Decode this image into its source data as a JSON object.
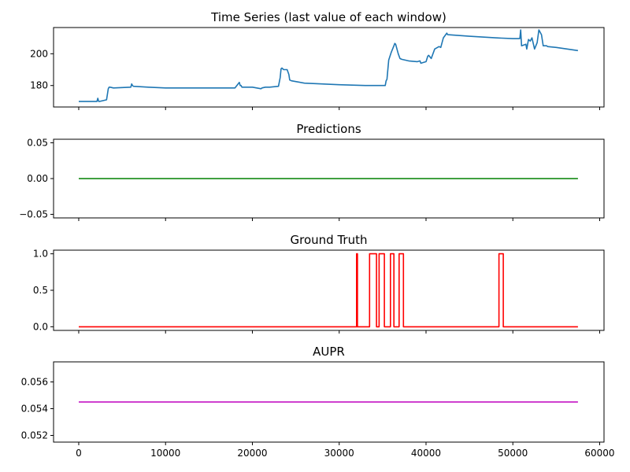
{
  "colors": {
    "time_series": "#1f77b4",
    "predictions": "#008000",
    "ground_truth": "#ff0000",
    "aupr": "#bf00bf"
  },
  "chart_data": [
    {
      "type": "line",
      "title": "Time Series (last value of each window)",
      "xlim": [
        -2900,
        60500
      ],
      "ylim": [
        166.5,
        216.5
      ],
      "yticks": [
        180,
        200
      ],
      "ytick_labels": [
        "180",
        "200"
      ],
      "xticks": [
        0,
        10000,
        20000,
        30000,
        40000,
        50000,
        60000
      ],
      "show_xtick_labels": false,
      "series": [
        {
          "color": "#1f77b4",
          "x": [
            0,
            2000,
            2100,
            2200,
            2300,
            2400,
            3200,
            3400,
            3500,
            3600,
            4000,
            6000,
            6100,
            6200,
            6300,
            8000,
            10000,
            15000,
            18000,
            18500,
            18600,
            18700,
            18800,
            19000,
            20000,
            21000,
            21100,
            21500,
            22000,
            23000,
            23200,
            23300,
            23400,
            23600,
            24000,
            24200,
            24300,
            24500,
            25000,
            26000,
            30000,
            33000,
            35300,
            35400,
            35500,
            35600,
            35700,
            36000,
            36300,
            36400,
            36500,
            36800,
            37000,
            37200,
            38000,
            39000,
            39300,
            39400,
            40000,
            40200,
            40300,
            40600,
            41000,
            41500,
            41700,
            42000,
            42400,
            42500,
            45000,
            48000,
            50000,
            50800,
            50900,
            51000,
            51500,
            51600,
            51800,
            52000,
            52200,
            52500,
            52800,
            53000,
            53300,
            53500,
            53700,
            53900,
            54000,
            55000,
            57500
          ],
          "y": [
            170,
            170,
            170,
            172,
            170,
            170,
            171,
            178,
            179,
            179,
            178.5,
            179,
            181,
            180,
            179.5,
            179,
            178.5,
            178.5,
            178.5,
            182,
            180,
            180,
            179,
            179,
            179,
            178,
            178.5,
            179,
            179,
            179.5,
            185,
            190.5,
            191,
            190,
            190,
            187,
            183.5,
            183,
            182.5,
            181.5,
            180.5,
            180,
            180,
            183,
            184,
            190,
            196,
            201,
            205,
            206.5,
            206,
            200,
            197,
            196.5,
            195.5,
            195,
            195.5,
            194,
            195,
            198.5,
            199,
            197,
            203,
            204.5,
            204,
            210,
            213,
            212,
            211,
            210,
            209.5,
            209.5,
            215,
            205,
            206,
            203,
            209,
            208,
            210,
            203,
            207,
            215,
            212,
            205,
            205,
            205,
            204.5,
            204,
            202
          ]
        }
      ]
    },
    {
      "type": "line",
      "title": "Predictions",
      "xlim": [
        -2900,
        60500
      ],
      "ylim": [
        -0.055,
        0.055
      ],
      "yticks": [
        -0.05,
        0,
        0.05
      ],
      "ytick_labels": [
        "−0.05",
        "0.00",
        "0.05"
      ],
      "xticks": [
        0,
        10000,
        20000,
        30000,
        40000,
        50000,
        60000
      ],
      "show_xtick_labels": false,
      "series": [
        {
          "color": "#008000",
          "x": [
            0,
            57500
          ],
          "y": [
            0,
            0
          ]
        }
      ]
    },
    {
      "type": "line",
      "title": "Ground Truth",
      "xlim": [
        -2900,
        60500
      ],
      "ylim": [
        -0.05,
        1.05
      ],
      "yticks": [
        0,
        0.5,
        1
      ],
      "ytick_labels": [
        "0.0",
        "0.5",
        "1.0"
      ],
      "xticks": [
        0,
        10000,
        20000,
        30000,
        40000,
        50000,
        60000
      ],
      "show_xtick_labels": false,
      "series": [
        {
          "color": "#ff0000",
          "x": [
            0,
            32000,
            32000,
            32100,
            32100,
            33500,
            33500,
            34300,
            34300,
            34600,
            34600,
            35200,
            35200,
            35900,
            35900,
            36300,
            36300,
            36900,
            36900,
            37400,
            37400,
            48400,
            48400,
            48900,
            48900,
            57500
          ],
          "y": [
            0,
            0,
            1,
            1,
            0,
            0,
            1,
            1,
            0,
            0,
            1,
            1,
            0,
            0,
            1,
            1,
            0,
            0,
            1,
            1,
            0,
            0,
            1,
            1,
            0,
            0
          ]
        }
      ]
    },
    {
      "type": "line",
      "title": "AUPR",
      "xlim": [
        -2900,
        60500
      ],
      "ylim": [
        0.0515,
        0.0575
      ],
      "yticks": [
        0.052,
        0.054,
        0.056
      ],
      "ytick_labels": [
        "0.052",
        "0.054",
        "0.056"
      ],
      "xticks": [
        0,
        10000,
        20000,
        30000,
        40000,
        50000,
        60000
      ],
      "xtick_labels": [
        "0",
        "10000",
        "20000",
        "30000",
        "40000",
        "50000",
        "60000"
      ],
      "show_xtick_labels": true,
      "series": [
        {
          "color": "#bf00bf",
          "x": [
            0,
            57500
          ],
          "y": [
            0.0545,
            0.0545
          ]
        }
      ]
    }
  ]
}
